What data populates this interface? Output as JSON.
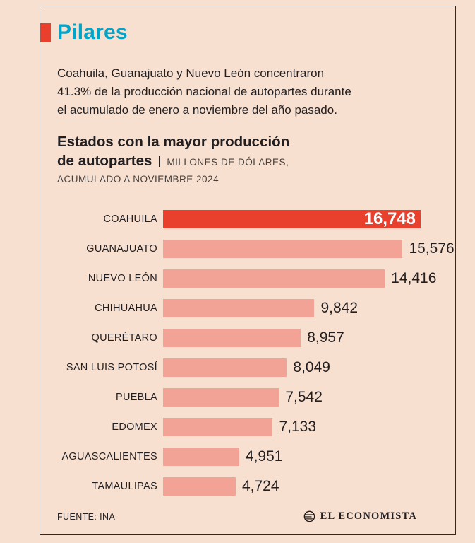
{
  "header": {
    "title": "Pilares",
    "intro_lines": [
      "Coahuila, Guanajuato y Nuevo León concentraron",
      "41.3% de la producción nacional de autopartes durante",
      "el acumulado de enero a noviembre del año pasado."
    ]
  },
  "chart": {
    "title_line1": "Estados con la mayor producción",
    "title_line2": "de autopartes",
    "units_line1": "MILLONES DE DÓLARES,",
    "units_line2": "ACUMULADO A NOVIEMBRE 2024"
  },
  "chart_data": {
    "type": "bar",
    "orientation": "horizontal",
    "title": "Estados con la mayor producción de autopartes",
    "units": "Millones de dólares, acumulado a noviembre 2024",
    "categories": [
      "COAHUILA",
      "GUANAJUATO",
      "NUEVO LEÓN",
      "CHIHUAHUA",
      "QUERÉTARO",
      "SAN LUIS POTOSÍ",
      "PUEBLA",
      "EDOMEX",
      "AGUASCALIENTES",
      "TAMAULIPAS"
    ],
    "values": [
      16748,
      15576,
      14416,
      9842,
      8957,
      8049,
      7542,
      7133,
      4951,
      4724
    ],
    "value_labels": [
      "16,748",
      "15,576",
      "14,416",
      "9,842",
      "8,957",
      "8,049",
      "7,542",
      "7,133",
      "4,951",
      "4,724"
    ],
    "highlight_index": 0,
    "xlim": [
      0,
      16748
    ],
    "grid": false
  },
  "footer": {
    "source": "FUENTE: INA",
    "brand": "EL ECONOMISTA"
  },
  "colors": {
    "background": "#f8e0d1",
    "frame_border": "#2f2824",
    "accent_red": "#e8402d",
    "bar_salmon": "#f2a396",
    "title_teal": "#00a5c9",
    "text_dark": "#231f20",
    "text_muted": "#453f3b"
  }
}
